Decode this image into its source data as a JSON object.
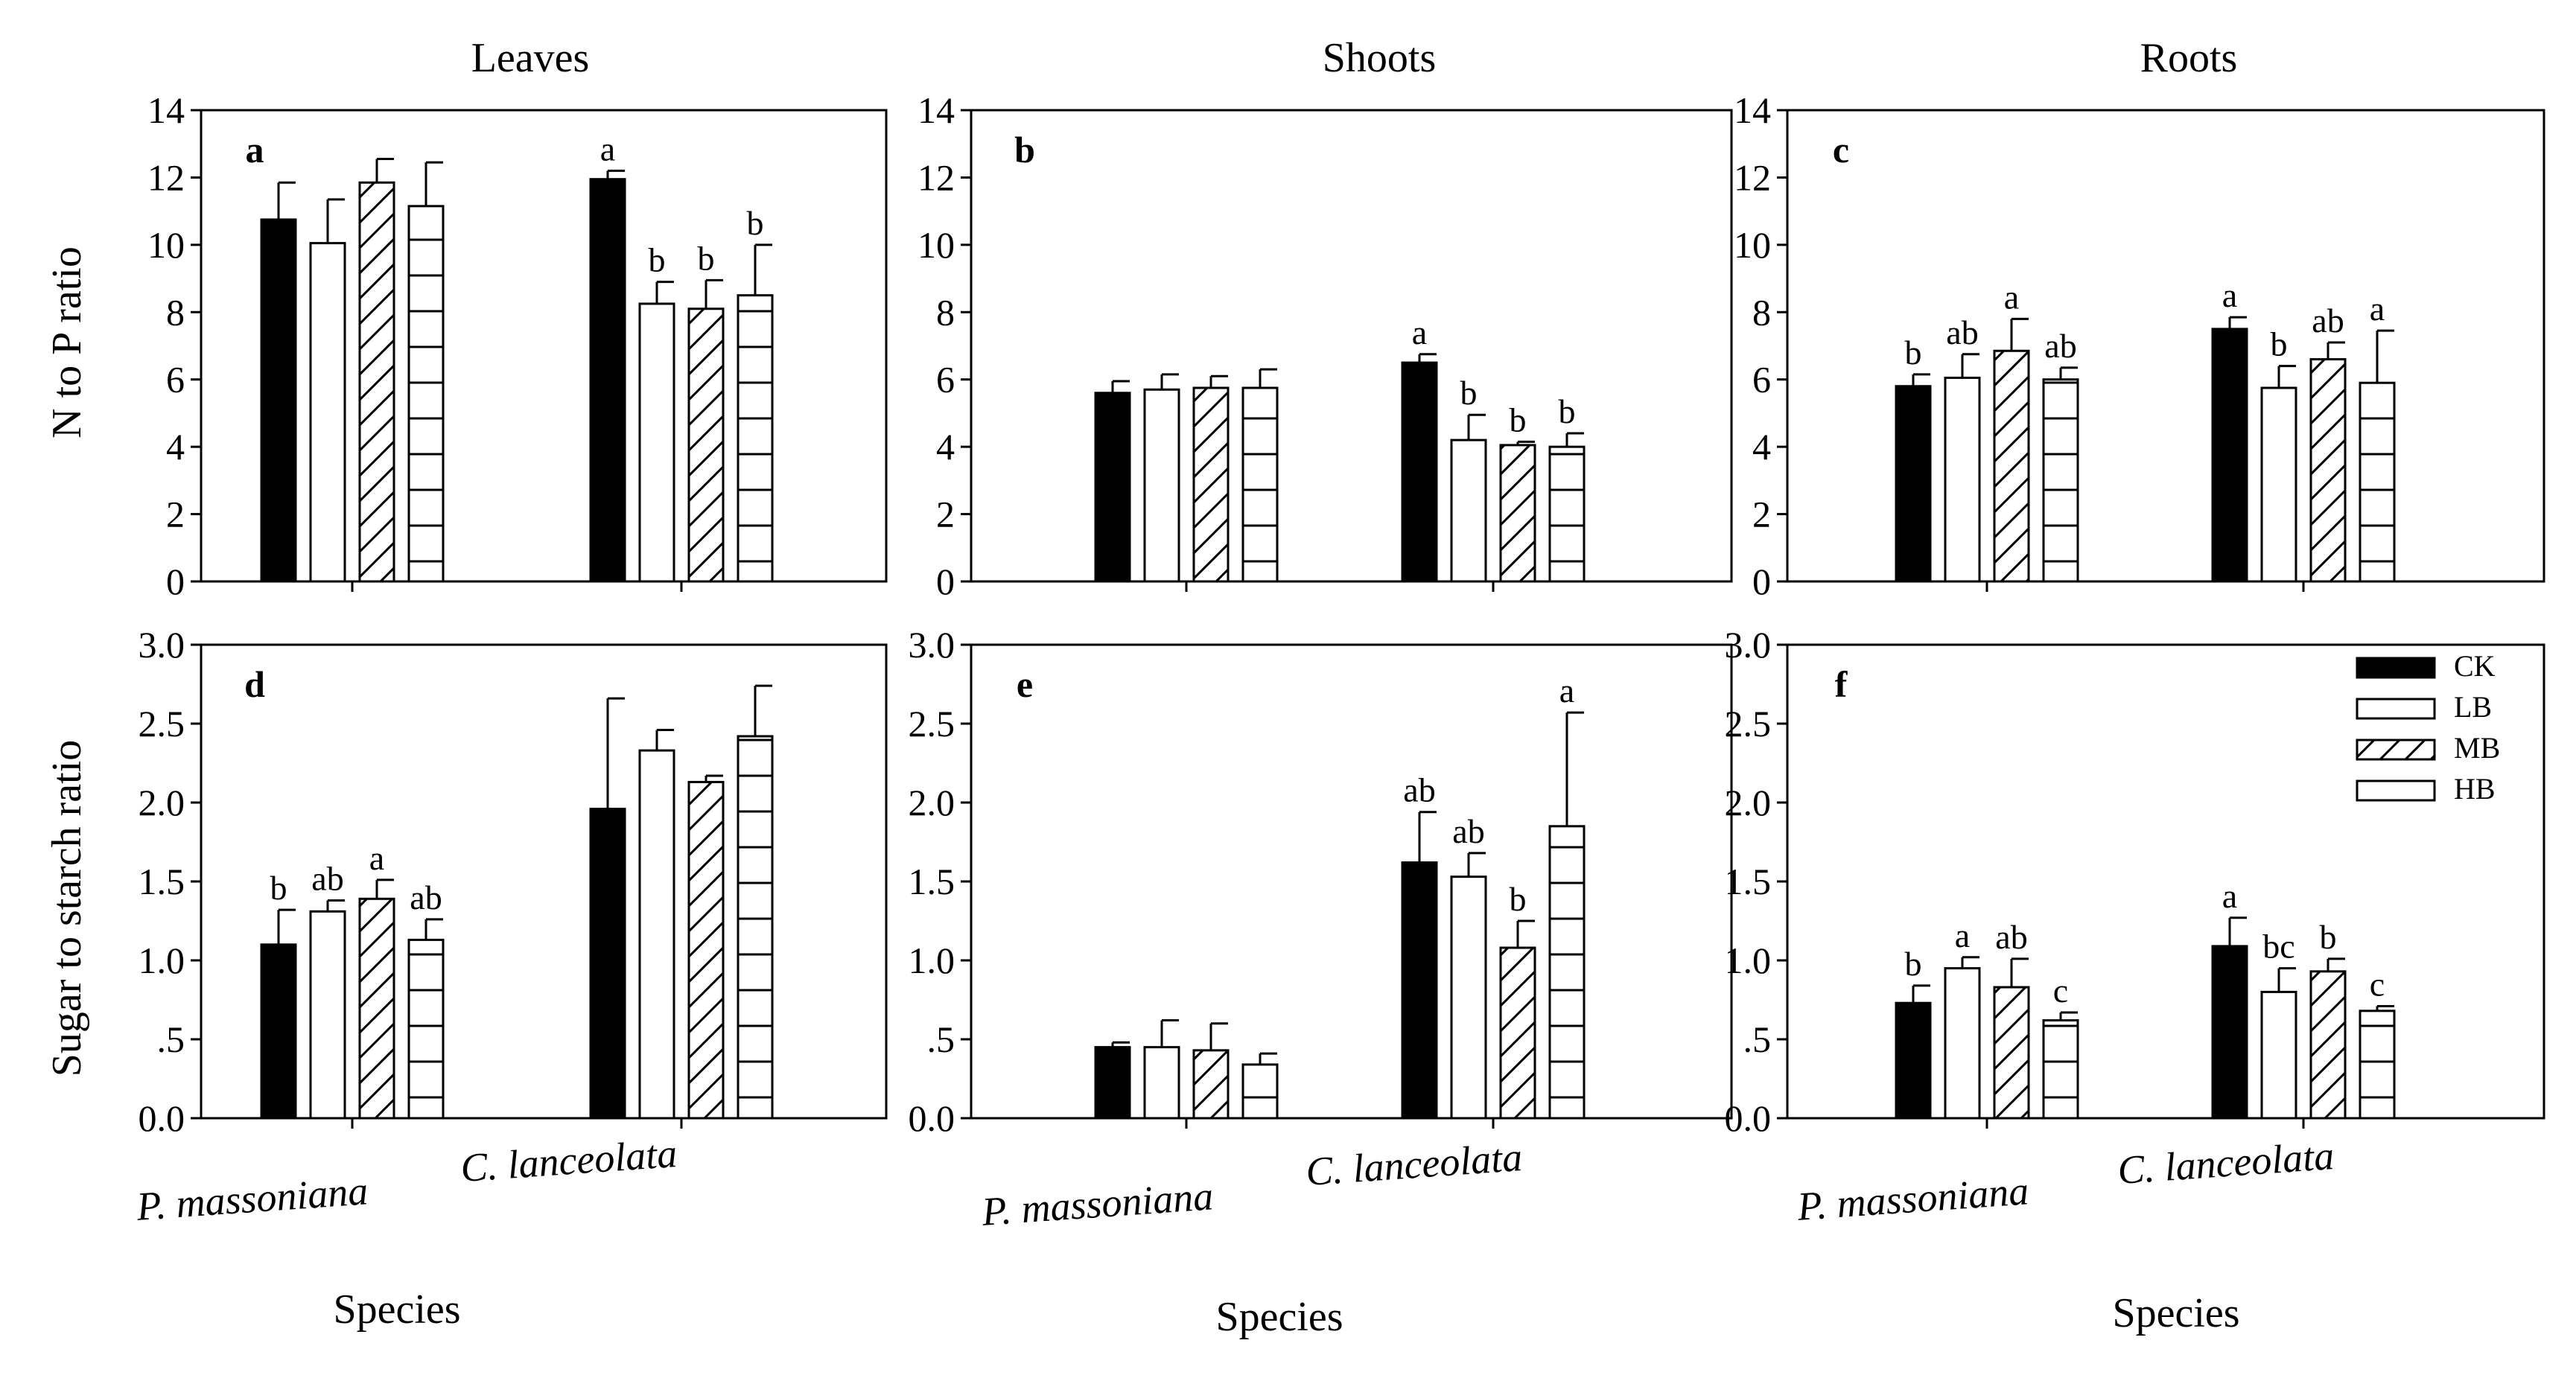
{
  "figure": {
    "column_titles": [
      "Leaves",
      "Shoots",
      "Roots"
    ],
    "row_ylabels": [
      "N to P ratio",
      "Sugar to starch ratio"
    ],
    "species_axis_title": "Species",
    "legend": [
      {
        "label": "CK",
        "pattern": "solid"
      },
      {
        "label": "LB",
        "pattern": "empty"
      },
      {
        "label": "MB",
        "pattern": "diagonal"
      },
      {
        "label": "HB",
        "pattern": "horizontal"
      }
    ]
  },
  "chart_data": [
    {
      "type": "bar",
      "panel": "a",
      "column": "Leaves",
      "ylabel": "N to P ratio",
      "ylim": [
        0,
        14
      ],
      "yticks": [
        0,
        2,
        4,
        6,
        8,
        10,
        12,
        14
      ],
      "ytick_labels": [
        "0",
        "2",
        "4",
        "6",
        "8",
        "10",
        "12",
        "14"
      ],
      "categories": [
        "P. massoniana",
        "C. lanceolata"
      ],
      "series": [
        {
          "name": "CK",
          "values": [
            10.75,
            11.95
          ],
          "errors": [
            1.1,
            0.25
          ],
          "labels": [
            "",
            "a"
          ]
        },
        {
          "name": "LB",
          "values": [
            10.05,
            8.25
          ],
          "errors": [
            1.3,
            0.65
          ],
          "labels": [
            "",
            "b"
          ]
        },
        {
          "name": "MB",
          "values": [
            11.85,
            8.1
          ],
          "errors": [
            0.7,
            0.85
          ],
          "labels": [
            "",
            "b"
          ]
        },
        {
          "name": "HB",
          "values": [
            11.15,
            8.5
          ],
          "errors": [
            1.3,
            1.5
          ],
          "labels": [
            "",
            "b"
          ]
        }
      ]
    },
    {
      "type": "bar",
      "panel": "b",
      "column": "Shoots",
      "ylabel": "N to P ratio",
      "ylim": [
        0,
        14
      ],
      "yticks": [
        0,
        2,
        4,
        6,
        8,
        10,
        12,
        14
      ],
      "ytick_labels": [
        "0",
        "2",
        "4",
        "6",
        "8",
        "10",
        "12",
        "14"
      ],
      "categories": [
        "P. massoniana",
        "C. lanceolata"
      ],
      "series": [
        {
          "name": "CK",
          "values": [
            5.6,
            6.5
          ],
          "errors": [
            0.35,
            0.25
          ],
          "labels": [
            "",
            "a"
          ]
        },
        {
          "name": "LB",
          "values": [
            5.7,
            4.2
          ],
          "errors": [
            0.45,
            0.75
          ],
          "labels": [
            "",
            "b"
          ]
        },
        {
          "name": "MB",
          "values": [
            5.75,
            4.05
          ],
          "errors": [
            0.35,
            0.1
          ],
          "labels": [
            "",
            "b"
          ]
        },
        {
          "name": "HB",
          "values": [
            5.75,
            4.0
          ],
          "errors": [
            0.55,
            0.4
          ],
          "labels": [
            "",
            "b"
          ]
        }
      ]
    },
    {
      "type": "bar",
      "panel": "c",
      "column": "Roots",
      "ylabel": "N to P ratio",
      "ylim": [
        0,
        14
      ],
      "yticks": [
        0,
        2,
        4,
        6,
        8,
        10,
        12,
        14
      ],
      "ytick_labels": [
        "0",
        "2",
        "4",
        "6",
        "8",
        "10",
        "12",
        "14"
      ],
      "categories": [
        "P. massoniana",
        "C. lanceolata"
      ],
      "series": [
        {
          "name": "CK",
          "values": [
            5.8,
            7.5
          ],
          "errors": [
            0.35,
            0.35
          ],
          "labels": [
            "b",
            "a"
          ]
        },
        {
          "name": "LB",
          "values": [
            6.05,
            5.75
          ],
          "errors": [
            0.7,
            0.65
          ],
          "labels": [
            "ab",
            "b"
          ]
        },
        {
          "name": "MB",
          "values": [
            6.85,
            6.6
          ],
          "errors": [
            0.95,
            0.5
          ],
          "labels": [
            "a",
            "ab"
          ]
        },
        {
          "name": "HB",
          "values": [
            6.0,
            5.9
          ],
          "errors": [
            0.35,
            1.55
          ],
          "labels": [
            "ab",
            "a"
          ]
        }
      ]
    },
    {
      "type": "bar",
      "panel": "d",
      "column": "Leaves",
      "ylabel": "Sugar to starch ratio",
      "ylim": [
        0,
        3.0
      ],
      "yticks": [
        0,
        0.5,
        1.0,
        1.5,
        2.0,
        2.5,
        3.0
      ],
      "ytick_labels": [
        "0.0",
        ".5",
        "1.0",
        "1.5",
        "2.0",
        "2.5",
        "3.0"
      ],
      "categories": [
        "P. massoniana",
        "C. lanceolata"
      ],
      "series": [
        {
          "name": "CK",
          "values": [
            1.1,
            1.96
          ],
          "errors": [
            0.22,
            0.7
          ],
          "labels": [
            "b",
            ""
          ]
        },
        {
          "name": "LB",
          "values": [
            1.31,
            2.33
          ],
          "errors": [
            0.07,
            0.13
          ],
          "labels": [
            "ab",
            ""
          ]
        },
        {
          "name": "MB",
          "values": [
            1.39,
            2.13
          ],
          "errors": [
            0.12,
            0.04
          ],
          "labels": [
            "a",
            ""
          ]
        },
        {
          "name": "HB",
          "values": [
            1.13,
            2.42
          ],
          "errors": [
            0.13,
            0.32
          ],
          "labels": [
            "ab",
            ""
          ]
        }
      ]
    },
    {
      "type": "bar",
      "panel": "e",
      "column": "Shoots",
      "ylabel": "Sugar to starch ratio",
      "ylim": [
        0,
        3.0
      ],
      "yticks": [
        0,
        0.5,
        1.0,
        1.5,
        2.0,
        2.5,
        3.0
      ],
      "ytick_labels": [
        "0.0",
        ".5",
        "1.0",
        "1.5",
        "2.0",
        "2.5",
        "3.0"
      ],
      "categories": [
        "P. massoniana",
        "C. lanceolata"
      ],
      "series": [
        {
          "name": "CK",
          "values": [
            0.45,
            1.62
          ],
          "errors": [
            0.03,
            0.32
          ],
          "labels": [
            "",
            "ab"
          ]
        },
        {
          "name": "LB",
          "values": [
            0.45,
            1.53
          ],
          "errors": [
            0.17,
            0.15
          ],
          "labels": [
            "",
            "ab"
          ]
        },
        {
          "name": "MB",
          "values": [
            0.43,
            1.08
          ],
          "errors": [
            0.17,
            0.17
          ],
          "labels": [
            "",
            "b"
          ]
        },
        {
          "name": "HB",
          "values": [
            0.34,
            1.85
          ],
          "errors": [
            0.07,
            0.72
          ],
          "labels": [
            "",
            "a"
          ]
        }
      ]
    },
    {
      "type": "bar",
      "panel": "f",
      "column": "Roots",
      "ylabel": "Sugar to starch ratio",
      "ylim": [
        0,
        3.0
      ],
      "yticks": [
        0,
        0.5,
        1.0,
        1.5,
        2.0,
        2.5,
        3.0
      ],
      "ytick_labels": [
        "0.0",
        ".5",
        "1.0",
        "1.5",
        "2.0",
        "2.5",
        "3.0"
      ],
      "categories": [
        "P. massoniana",
        "C. lanceolata"
      ],
      "series": [
        {
          "name": "CK",
          "values": [
            0.73,
            1.09
          ],
          "errors": [
            0.11,
            0.18
          ],
          "labels": [
            "b",
            "a"
          ]
        },
        {
          "name": "LB",
          "values": [
            0.95,
            0.8
          ],
          "errors": [
            0.07,
            0.15
          ],
          "labels": [
            "a",
            "bc"
          ]
        },
        {
          "name": "MB",
          "values": [
            0.83,
            0.93
          ],
          "errors": [
            0.18,
            0.08
          ],
          "labels": [
            "ab",
            "b"
          ]
        },
        {
          "name": "HB",
          "values": [
            0.62,
            0.68
          ],
          "errors": [
            0.05,
            0.03
          ],
          "labels": [
            "c",
            "c"
          ]
        }
      ],
      "legend_location": "top-right"
    }
  ]
}
